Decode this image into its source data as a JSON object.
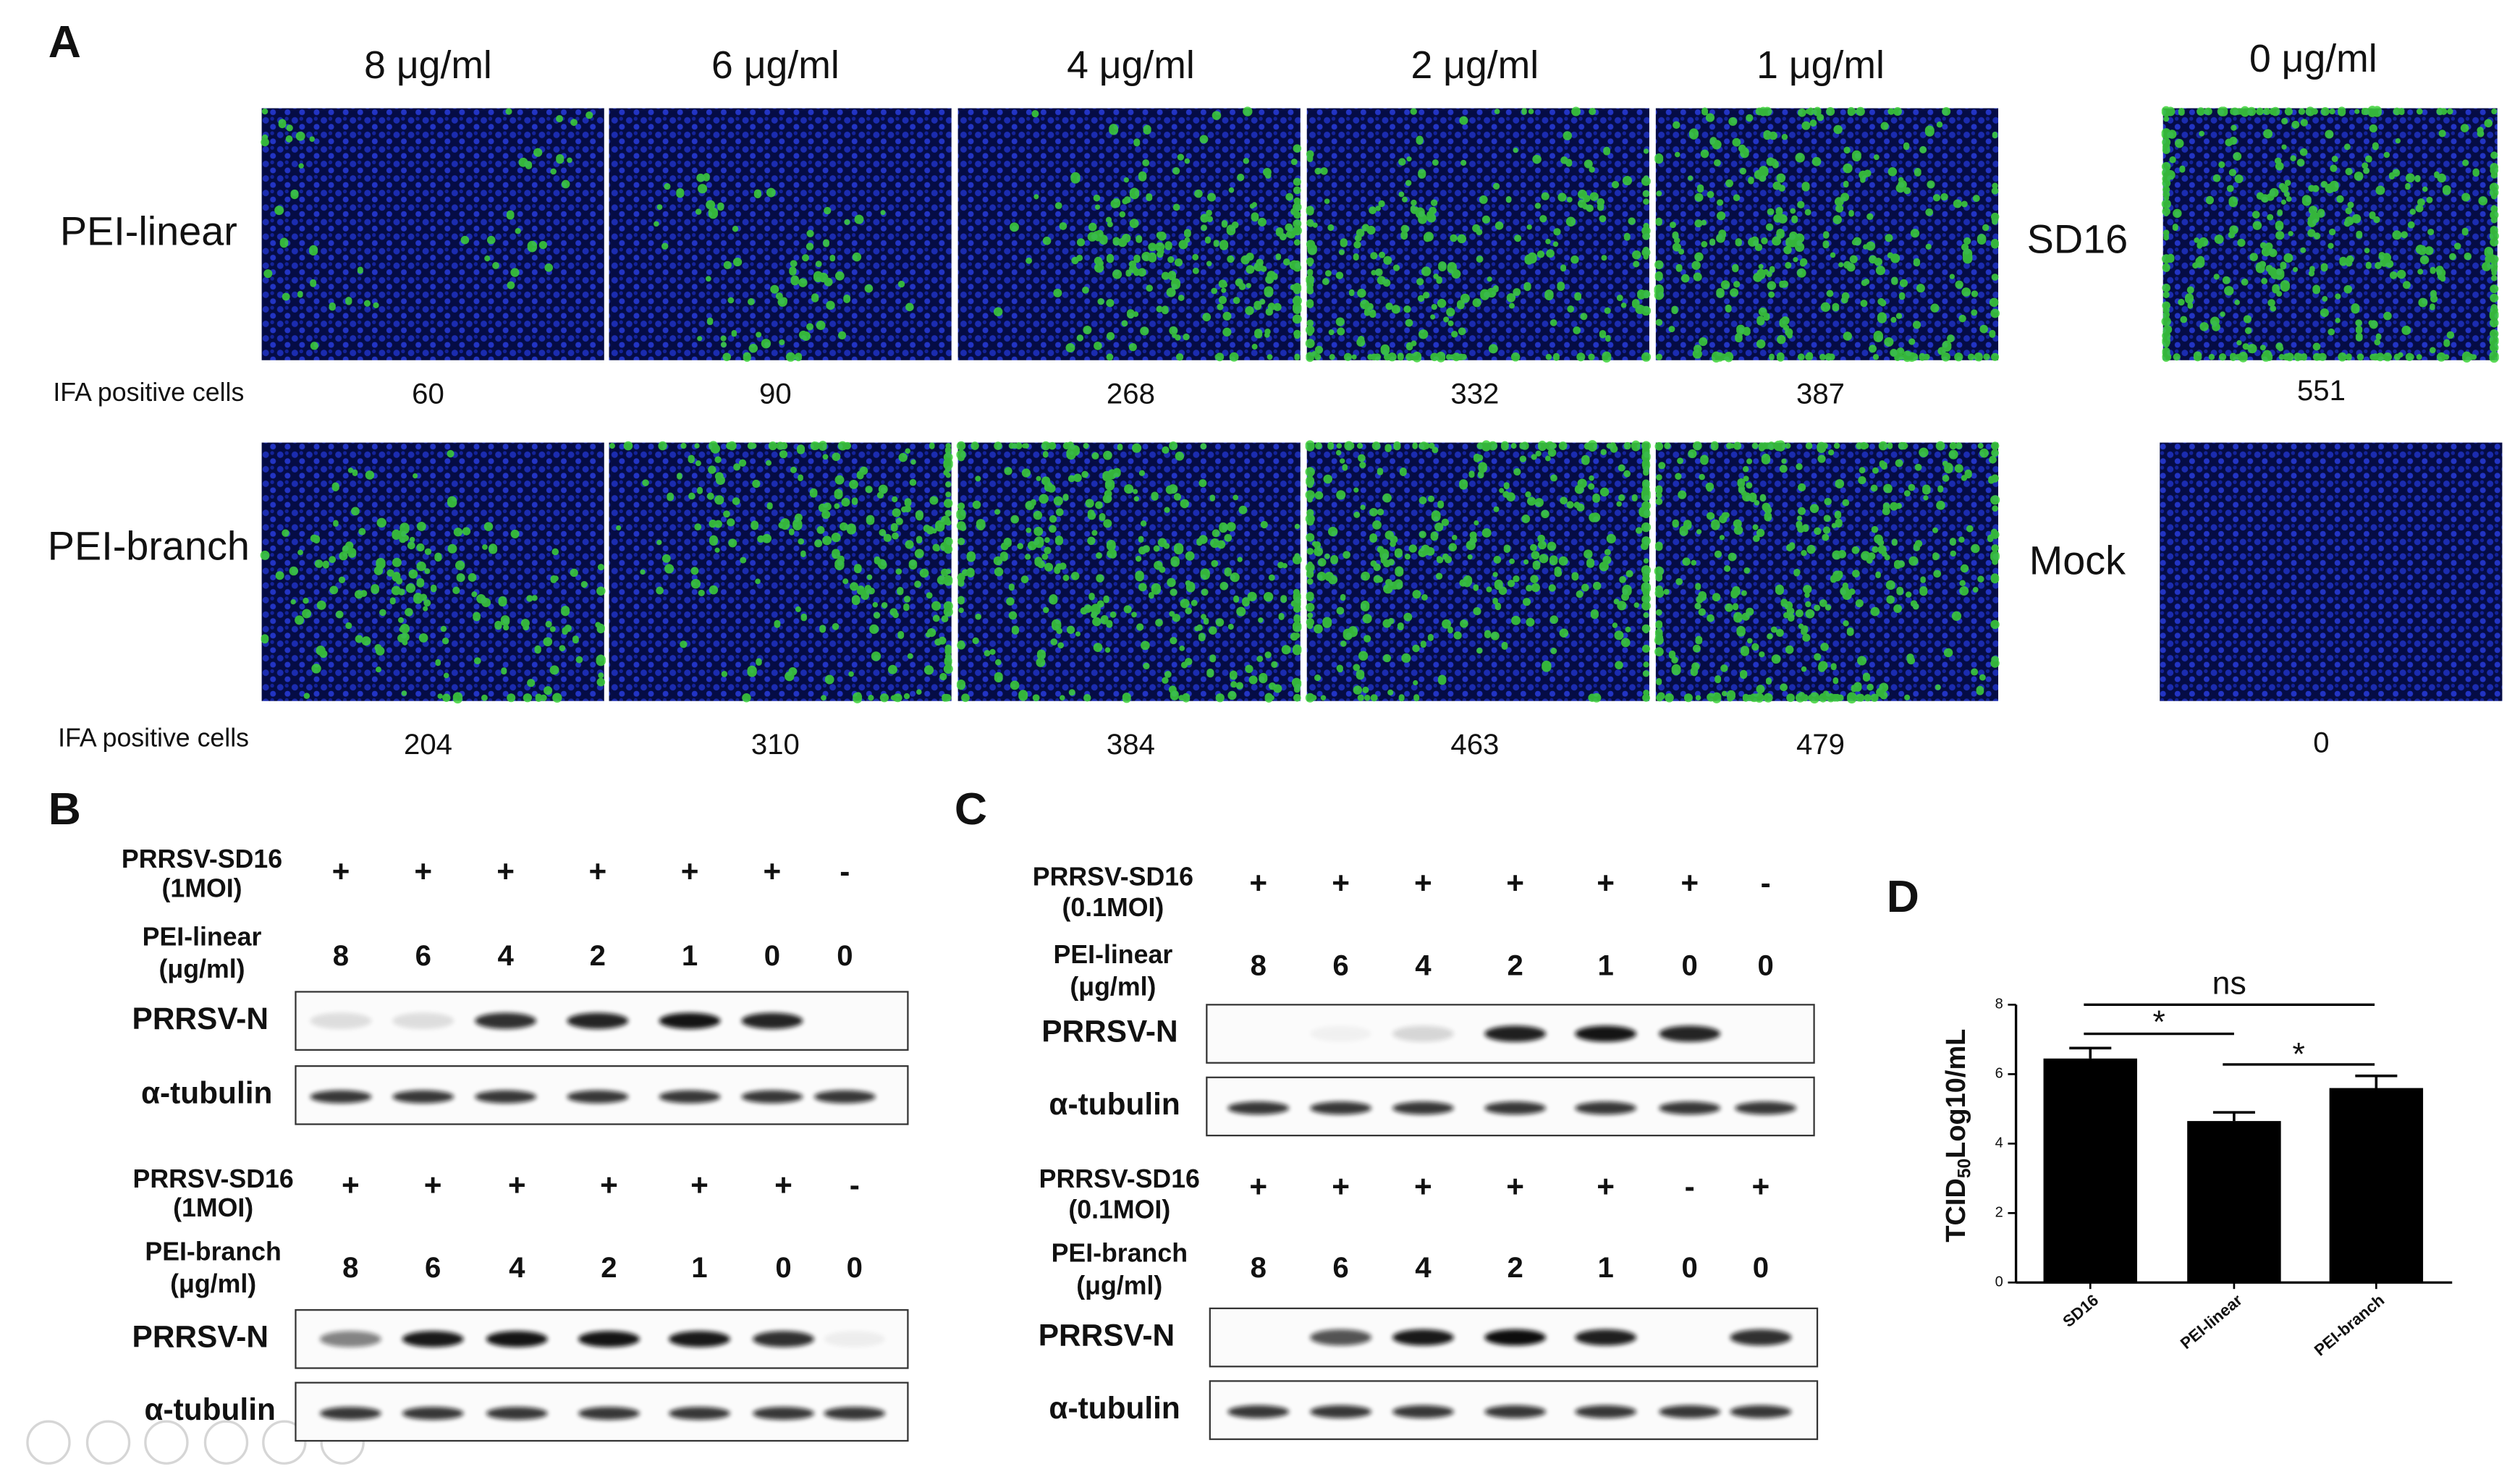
{
  "panels": {
    "A": {
      "label": "A",
      "concentrations": [
        "8 μg/ml",
        "6 μg/ml",
        "4 μg/ml",
        "2 μg/ml",
        "1 μg/ml"
      ],
      "control_concentration": "0 μg/ml",
      "rows": [
        {
          "name": "PEI-linear",
          "count_label": "IFA positive cells",
          "counts": [
            60,
            90,
            268,
            332,
            387
          ],
          "control": "SD16",
          "control_count": 551
        },
        {
          "name": "PEI-branch",
          "count_label": "IFA positive cells",
          "counts": [
            204,
            310,
            384,
            463,
            479
          ],
          "control": "Mock",
          "control_count": 0
        }
      ]
    },
    "B": {
      "label": "B",
      "blots": [
        {
          "virus_label": [
            "PRRSV-SD16",
            "(1MOI)"
          ],
          "virus": [
            "+",
            "+",
            "+",
            "+",
            "+",
            "+",
            "-"
          ],
          "dose_label": [
            "PEI-linear",
            "(μg/ml)"
          ],
          "doses": [
            8,
            6,
            4,
            2,
            1,
            0,
            0
          ],
          "bands": [
            "PRRSV-N",
            "α-tubulin"
          ]
        },
        {
          "virus_label": [
            "PRRSV-SD16",
            "(1MOI)"
          ],
          "virus": [
            "+",
            "+",
            "+",
            "+",
            "+",
            "+",
            "-"
          ],
          "dose_label": [
            "PEI-branch",
            "(μg/ml)"
          ],
          "doses": [
            8,
            6,
            4,
            2,
            1,
            0,
            0
          ],
          "bands": [
            "PRRSV-N",
            "α-tubulin"
          ]
        }
      ]
    },
    "C": {
      "label": "C",
      "blots": [
        {
          "virus_label": [
            "PRRSV-SD16",
            "(0.1MOI)"
          ],
          "virus": [
            "+",
            "+",
            "+",
            "+",
            "+",
            "+",
            "-"
          ],
          "dose_label": [
            "PEI-linear",
            "(μg/ml)"
          ],
          "doses": [
            8,
            6,
            4,
            2,
            1,
            0,
            0
          ],
          "bands": [
            "PRRSV-N",
            "α-tubulin"
          ]
        },
        {
          "virus_label": [
            "PRRSV-SD16",
            "(0.1MOI)"
          ],
          "virus": [
            "+",
            "+",
            "+",
            "+",
            "+",
            "-",
            "+"
          ],
          "dose_label": [
            "PEI-branch",
            "(μg/ml)"
          ],
          "doses": [
            8,
            6,
            4,
            2,
            1,
            0,
            0
          ],
          "bands": [
            "PRRSV-N",
            "α-tubulin"
          ]
        }
      ]
    },
    "D": {
      "label": "D"
    }
  },
  "chart_data": {
    "type": "bar",
    "categories": [
      "SD16",
      "PEI-linear",
      "PEI-branch"
    ],
    "values": [
      6.45,
      4.65,
      5.6
    ],
    "errors": [
      0.3,
      0.25,
      0.35
    ],
    "color": "#000000",
    "ylim": [
      0,
      8
    ],
    "yticks": [
      0,
      2,
      4,
      6,
      8
    ],
    "y_label": {
      "main": "TCID",
      "sub": "50",
      "rest": "Log10/mL"
    },
    "annotations": [
      "ns",
      "*",
      "*"
    ]
  }
}
